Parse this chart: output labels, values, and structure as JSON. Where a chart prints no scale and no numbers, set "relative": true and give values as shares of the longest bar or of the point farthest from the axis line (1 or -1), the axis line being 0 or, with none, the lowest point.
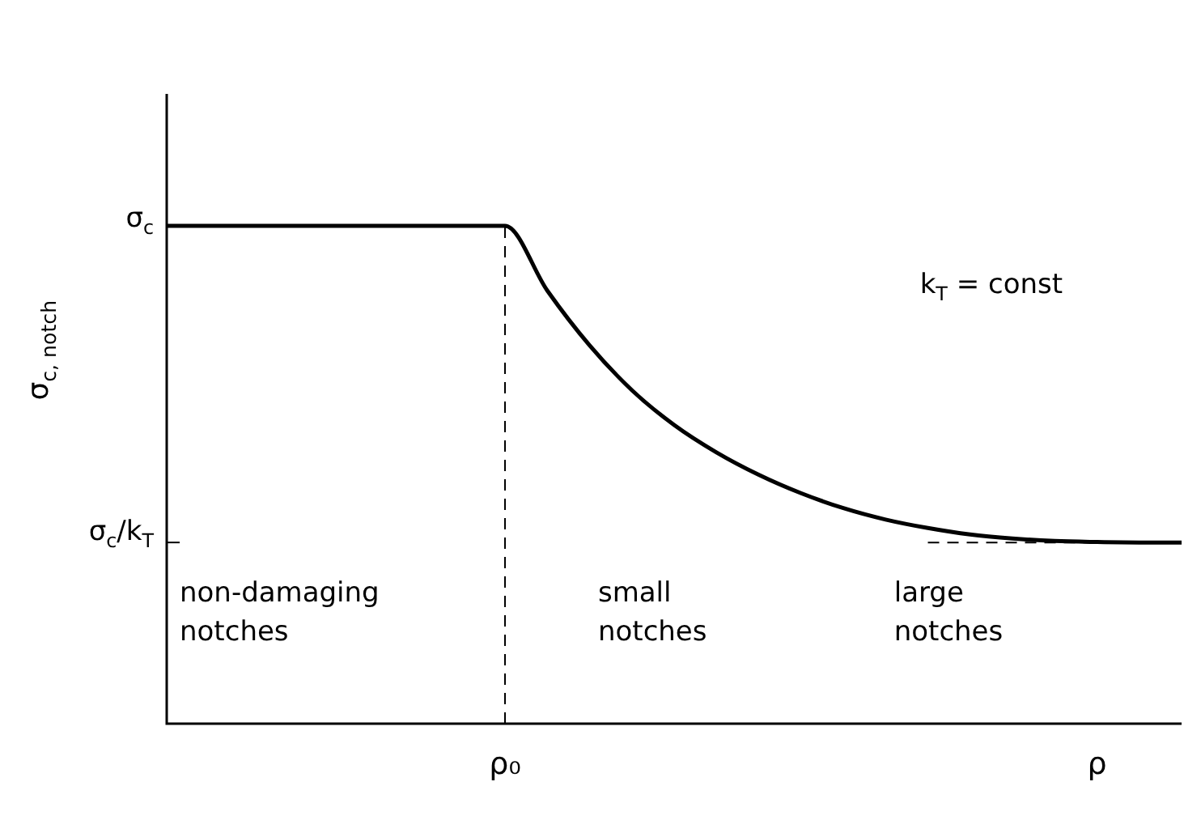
{
  "chart_data": {
    "type": "line",
    "relative": true,
    "ylabel": "σ$_{c, notch}$",
    "categories": [
      null,
      null,
      null,
      null,
      null,
      null,
      null,
      null,
      "ρ₀",
      null,
      null,
      null,
      null,
      null,
      null,
      null,
      null,
      null,
      null,
      null,
      null,
      null,
      "ρ",
      null,
      null
    ],
    "series": [
      {
        "color": "#000000",
        "values": [
          1,
          1,
          1,
          1,
          1,
          1,
          1,
          1,
          1,
          0.87,
          0.76,
          0.67,
          0.6,
          0.545,
          0.5,
          0.463,
          0.433,
          0.41,
          0.393,
          0.38,
          0.372,
          0.367,
          0.365,
          0.364,
          0.364
        ]
      }
    ],
    "ref_lines": [
      {
        "axis": "x",
        "value": "ρ₀",
        "line_style": "dashed",
        "color": "#000000"
      },
      {
        "axis": "y",
        "value": 0.364,
        "label": "σ$_{c}$/k$_{T}$",
        "line_style": "dashed",
        "color": "#000000"
      }
    ],
    "annotations": [
      "σ$_{c}$",
      "k$_{T}$ = const",
      "non-damaging notches",
      "small notches",
      "large notches"
    ],
    "tick_labels": "x",
    "grid": false,
    "legend": false,
    "marker": "none",
    "line_style": "solid"
  }
}
